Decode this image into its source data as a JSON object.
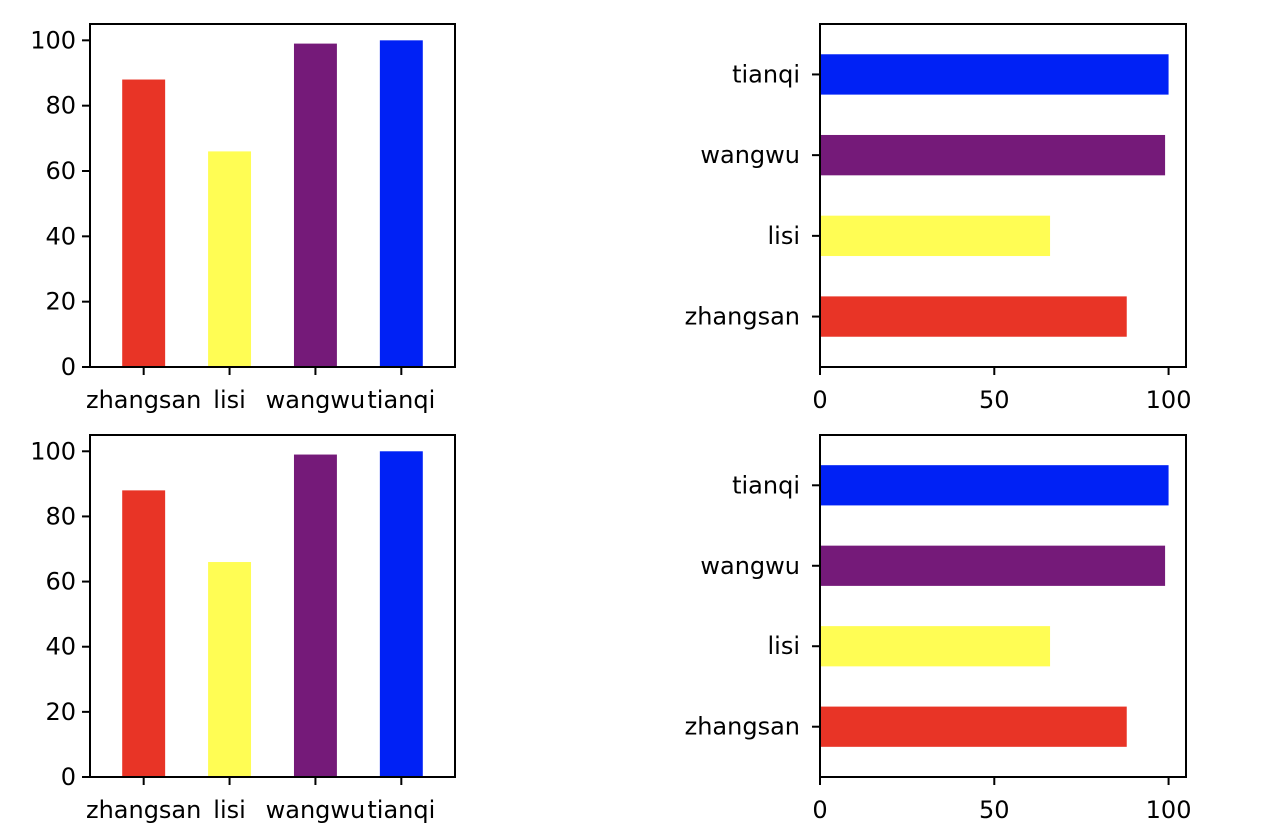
{
  "chart_data": [
    {
      "type": "bar",
      "orientation": "vertical",
      "position": "top-left",
      "categories": [
        "zhangsan",
        "lisi",
        "wangwu",
        "tianqi"
      ],
      "values": [
        88,
        66,
        99,
        100
      ],
      "colors": [
        "#e83426",
        "#fffd54",
        "#751a79",
        "#0021f5"
      ],
      "ylim": [
        0,
        105
      ],
      "yticks": [
        0,
        20,
        40,
        60,
        80,
        100
      ],
      "grid": false,
      "title": "",
      "xlabel": "",
      "ylabel": ""
    },
    {
      "type": "bar",
      "orientation": "horizontal",
      "position": "top-right",
      "categories": [
        "zhangsan",
        "lisi",
        "wangwu",
        "tianqi"
      ],
      "values": [
        88,
        66,
        99,
        100
      ],
      "colors": [
        "#e83426",
        "#fffd54",
        "#751a79",
        "#0021f5"
      ],
      "xlim": [
        0,
        105
      ],
      "xticks": [
        0,
        50,
        100
      ],
      "grid": false,
      "title": "",
      "xlabel": "",
      "ylabel": ""
    },
    {
      "type": "bar",
      "orientation": "vertical",
      "position": "bottom-left",
      "categories": [
        "zhangsan",
        "lisi",
        "wangwu",
        "tianqi"
      ],
      "values": [
        88,
        66,
        99,
        100
      ],
      "colors": [
        "#e83426",
        "#fffd54",
        "#751a79",
        "#0021f5"
      ],
      "ylim": [
        0,
        105
      ],
      "yticks": [
        0,
        20,
        40,
        60,
        80,
        100
      ],
      "grid": false,
      "title": "",
      "xlabel": "",
      "ylabel": ""
    },
    {
      "type": "bar",
      "orientation": "horizontal",
      "position": "bottom-right",
      "categories": [
        "zhangsan",
        "lisi",
        "wangwu",
        "tianqi"
      ],
      "values": [
        88,
        66,
        99,
        100
      ],
      "colors": [
        "#e83426",
        "#fffd54",
        "#751a79",
        "#0021f5"
      ],
      "xlim": [
        0,
        105
      ],
      "xticks": [
        0,
        50,
        100
      ],
      "grid": false,
      "title": "",
      "xlabel": "",
      "ylabel": ""
    }
  ]
}
